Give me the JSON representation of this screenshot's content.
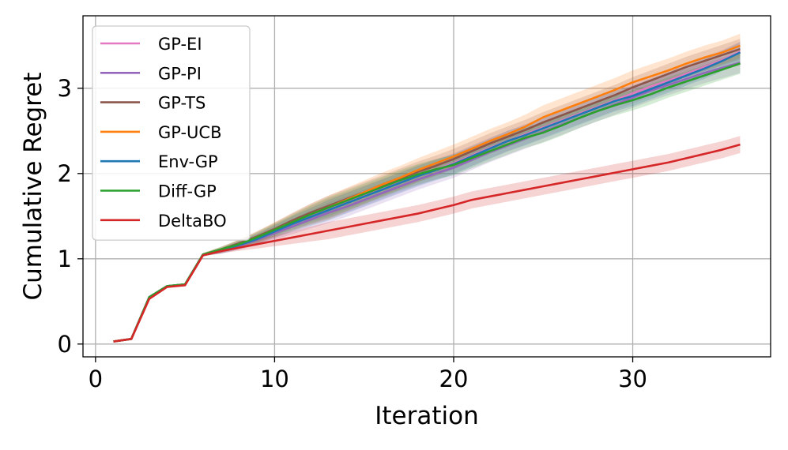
{
  "chart_data": {
    "type": "line",
    "title": "",
    "xlabel": "Iteration",
    "ylabel": "Cumulative Regret",
    "xlim": [
      -0.7,
      37.7
    ],
    "ylim": [
      -0.15,
      3.85
    ],
    "xticks": [
      0,
      10,
      20,
      30
    ],
    "yticks": [
      0,
      1,
      2,
      3
    ],
    "grid": true,
    "legend_position": "upper left",
    "x": [
      1,
      2,
      3,
      4,
      5,
      6,
      7,
      8,
      9,
      10,
      11,
      12,
      13,
      14,
      15,
      16,
      17,
      18,
      19,
      20,
      21,
      22,
      23,
      24,
      25,
      26,
      27,
      28,
      29,
      30,
      31,
      32,
      33,
      34,
      35,
      36
    ],
    "shared_start": [
      0.03,
      0.06,
      0.55,
      0.68,
      0.7,
      1.05
    ],
    "series": [
      {
        "name": "GP-EI",
        "color": "#e377c2",
        "band": 0.12,
        "values": [
          0.03,
          0.06,
          0.55,
          0.68,
          0.7,
          1.05,
          1.1,
          1.17,
          1.24,
          1.33,
          1.42,
          1.51,
          1.59,
          1.66,
          1.74,
          1.82,
          1.9,
          1.98,
          2.05,
          2.12,
          2.21,
          2.3,
          2.38,
          2.46,
          2.54,
          2.62,
          2.7,
          2.78,
          2.86,
          2.94,
          3.02,
          3.09,
          3.17,
          3.25,
          3.33,
          3.43
        ]
      },
      {
        "name": "GP-PI",
        "color": "#9467bd",
        "band": 0.12,
        "values": [
          0.03,
          0.06,
          0.55,
          0.68,
          0.7,
          1.05,
          1.09,
          1.15,
          1.22,
          1.3,
          1.38,
          1.46,
          1.54,
          1.61,
          1.69,
          1.77,
          1.85,
          1.93,
          2.0,
          2.07,
          2.16,
          2.25,
          2.33,
          2.41,
          2.49,
          2.57,
          2.65,
          2.73,
          2.81,
          2.89,
          2.97,
          3.04,
          3.11,
          3.18,
          3.24,
          3.3
        ]
      },
      {
        "name": "GP-TS",
        "color": "#8c564b",
        "band": 0.12,
        "values": [
          0.03,
          0.06,
          0.55,
          0.68,
          0.7,
          1.05,
          1.11,
          1.18,
          1.26,
          1.35,
          1.45,
          1.54,
          1.62,
          1.7,
          1.78,
          1.86,
          1.94,
          2.02,
          2.09,
          2.17,
          2.26,
          2.35,
          2.43,
          2.51,
          2.6,
          2.68,
          2.76,
          2.84,
          2.92,
          3.01,
          3.09,
          3.17,
          3.25,
          3.32,
          3.39,
          3.46
        ]
      },
      {
        "name": "GP-UCB",
        "color": "#ff7f0e",
        "band": 0.14,
        "values": [
          0.03,
          0.06,
          0.55,
          0.68,
          0.7,
          1.05,
          1.1,
          1.17,
          1.25,
          1.34,
          1.43,
          1.52,
          1.6,
          1.69,
          1.78,
          1.87,
          1.95,
          2.04,
          2.12,
          2.2,
          2.29,
          2.38,
          2.46,
          2.55,
          2.66,
          2.74,
          2.82,
          2.9,
          2.98,
          3.07,
          3.14,
          3.21,
          3.29,
          3.36,
          3.42,
          3.5
        ]
      },
      {
        "name": "Env-GP",
        "color": "#1f77b4",
        "band": 0.12,
        "values": [
          0.03,
          0.06,
          0.55,
          0.68,
          0.7,
          1.05,
          1.09,
          1.16,
          1.23,
          1.32,
          1.41,
          1.49,
          1.57,
          1.65,
          1.73,
          1.81,
          1.89,
          1.97,
          2.04,
          2.11,
          2.2,
          2.29,
          2.38,
          2.45,
          2.53,
          2.61,
          2.69,
          2.77,
          2.85,
          2.91,
          2.99,
          3.07,
          3.15,
          3.23,
          3.32,
          3.42
        ]
      },
      {
        "name": "Diff-GP",
        "color": "#2ca02c",
        "band": 0.12,
        "values": [
          0.03,
          0.06,
          0.55,
          0.68,
          0.7,
          1.05,
          1.11,
          1.17,
          1.25,
          1.34,
          1.43,
          1.52,
          1.6,
          1.68,
          1.76,
          1.84,
          1.92,
          1.99,
          2.05,
          2.1,
          2.18,
          2.26,
          2.34,
          2.42,
          2.48,
          2.56,
          2.65,
          2.73,
          2.8,
          2.86,
          2.93,
          3.01,
          3.08,
          3.15,
          3.22,
          3.29
        ]
      },
      {
        "name": "DeltaBO",
        "color": "#d62728",
        "band": 0.1,
        "values": [
          0.03,
          0.06,
          0.53,
          0.67,
          0.69,
          1.04,
          1.09,
          1.13,
          1.17,
          1.21,
          1.25,
          1.29,
          1.33,
          1.37,
          1.41,
          1.45,
          1.49,
          1.53,
          1.58,
          1.63,
          1.69,
          1.73,
          1.77,
          1.81,
          1.85,
          1.89,
          1.93,
          1.97,
          2.01,
          2.05,
          2.09,
          2.13,
          2.18,
          2.23,
          2.28,
          2.34
        ]
      }
    ]
  }
}
